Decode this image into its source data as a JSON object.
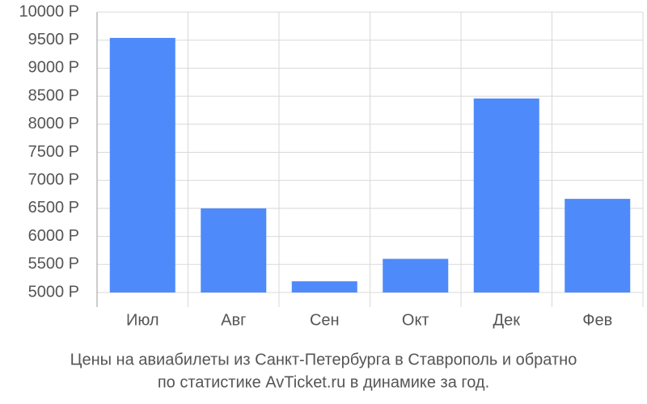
{
  "chart_data": {
    "type": "bar",
    "title": [
      "Цены на авиабилеты из Санкт-Петербурга в Ставрополь и обратно",
      "по статистике AvTicket.ru в динамике за год."
    ],
    "categories": [
      "Июл",
      "Авг",
      "Сен",
      "Окт",
      "Дек",
      "Фев"
    ],
    "values": [
      9540,
      6500,
      5200,
      5600,
      8460,
      6670
    ],
    "color": "#4e8af9",
    "ylim": [
      5000,
      10000
    ],
    "yticks": [
      {
        "value": 5000,
        "label": "5000 Р"
      },
      {
        "value": 5500,
        "label": "5500 Р"
      },
      {
        "value": 6000,
        "label": "6000 Р"
      },
      {
        "value": 6500,
        "label": "6500 Р"
      },
      {
        "value": 7000,
        "label": "7000 Р"
      },
      {
        "value": 7500,
        "label": "7500 Р"
      },
      {
        "value": 8000,
        "label": "8000 Р"
      },
      {
        "value": 8500,
        "label": "8500 Р"
      },
      {
        "value": 9000,
        "label": "9000 Р"
      },
      {
        "value": 9500,
        "label": "9500 Р"
      },
      {
        "value": 10000,
        "label": "10000 Р"
      }
    ],
    "grid": true
  }
}
